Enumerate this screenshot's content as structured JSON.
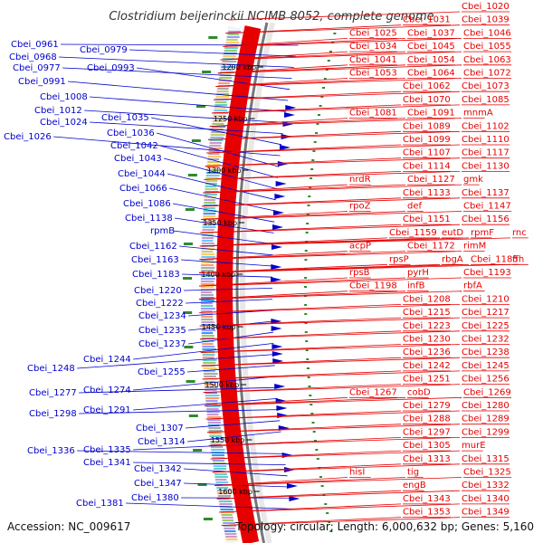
{
  "title": "Clostridium beijerinckii NCIMB 8052, complete genome",
  "accession": "Accession: NC_009617",
  "summary": "Topology: circular; Length: 6,000,632 bp; Genes: 5,160",
  "colors": {
    "forward": "#0000cc",
    "reverse": "#e60000",
    "gc_skew": "#2e8b2e"
  },
  "ticks": [
    "1200 kbp",
    "1250 kbp",
    "1300 kbp",
    "1350 kbp",
    "1400 kbp",
    "1450 kbp",
    "1500 kbp",
    "1550 kbp",
    "1600 kbp"
  ],
  "left_genes": [
    "Cbei_0961",
    "Cbei_0979",
    "Cbei_0968",
    "Cbei_0977",
    "Cbei_0993",
    "Cbei_0991",
    "Cbei_1008",
    "Cbei_1012",
    "Cbei_1024",
    "Cbei_1035",
    "Cbei_1026",
    "Cbei_1036",
    "Cbei_1042",
    "Cbei_1043",
    "Cbei_1044",
    "Cbei_1066",
    "Cbei_1086",
    "Cbei_1138",
    "rpmB",
    "Cbei_1162",
    "Cbei_1163",
    "Cbei_1183",
    "Cbei_1220",
    "Cbei_1222",
    "Cbei_1234",
    "Cbei_1235",
    "Cbei_1237",
    "Cbei_1244",
    "Cbei_1248",
    "Cbei_1255",
    "Cbei_1274",
    "Cbei_1277",
    "Cbei_1291",
    "Cbei_1298",
    "Cbei_1307",
    "Cbei_1314",
    "Cbei_1335",
    "Cbei_1336",
    "Cbei_1341",
    "Cbei_1342",
    "Cbei_1347",
    "Cbei_1380",
    "Cbei_1381"
  ],
  "right_genes": [
    "Cbei_1020",
    "Cbei_1031",
    "Cbei_1039",
    "Cbei_1025",
    "Cbei_1037",
    "Cbei_1046",
    "Cbei_1034",
    "Cbei_1045",
    "Cbei_1055",
    "Cbei_1041",
    "Cbei_1054",
    "Cbei_1063",
    "Cbei_1053",
    "Cbei_1064",
    "Cbei_1072",
    "Cbei_1062",
    "Cbei_1073",
    "Cbei_1070",
    "Cbei_1085",
    "Cbei_1081",
    "Cbei_1091",
    "mnmA",
    "Cbei_1089",
    "Cbei_1102",
    "Cbei_1099",
    "Cbei_1107",
    "Cbei_1110",
    "Cbei_1114",
    "Cbei_1117",
    "nrdR",
    "Cbei_1127",
    "Cbei_1130",
    "Cbei_1133",
    "Cbei_1137",
    "gmk",
    "rpoZ",
    "def",
    "Cbei_1147",
    "Cbei_1151",
    "Cbei_1156",
    "Cbei_1159",
    "eutD",
    "rpmF",
    "rnc",
    "acpP",
    "Cbei_1172",
    "rimM",
    "rpsP",
    "rbgA",
    "Cbei_1185",
    "ffh",
    "rpsB",
    "pyrH",
    "Cbei_1193",
    "Cbei_1198",
    "infB",
    "rbfA",
    "Cbei_1208",
    "Cbei_1210",
    "Cbei_1215",
    "Cbei_1217",
    "Cbei_1223",
    "Cbei_1225",
    "Cbei_1230",
    "Cbei_1232",
    "Cbei_1236",
    "Cbei_1238",
    "Cbei_1242",
    "Cbei_1245",
    "Cbei_1251",
    "Cbei_1256",
    "Cbei_1267",
    "cobD",
    "Cbei_1269",
    "Cbei_1279",
    "Cbei_1280",
    "Cbei_1288",
    "Cbei_1289",
    "Cbei_1297",
    "Cbei_1299",
    "Cbei_1305",
    "murE",
    "Cbei_1313",
    "Cbei_1315",
    "hisI",
    "tig",
    "Cbei_1325",
    "engB",
    "Cbei_1332",
    "Cbei_1343",
    "Cbei_1340",
    "Cbei_1353",
    "Cbei_1349"
  ]
}
